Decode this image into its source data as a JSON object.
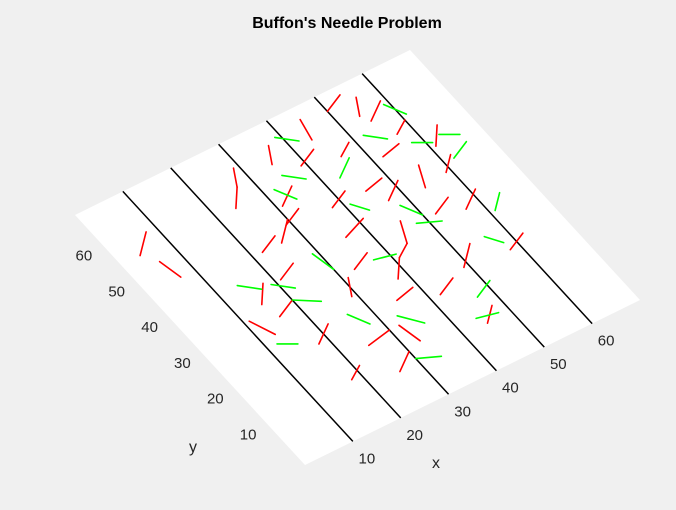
{
  "chart_data": {
    "type": "scatter",
    "title": "Buffon's Needle Problem",
    "xlabel": "x",
    "ylabel": "y",
    "xlim": [
      0,
      70
    ],
    "ylim": [
      0,
      70
    ],
    "x_ticks": [
      10,
      20,
      30,
      40,
      50,
      60
    ],
    "y_ticks": [
      10,
      20,
      30,
      40,
      50,
      60
    ],
    "line_x_positions": [
      10,
      20,
      30,
      40,
      50,
      60
    ],
    "line_color": "#000000",
    "plane_color": "#ffffff",
    "background_color": "#f0f0f0",
    "grid": false,
    "series": [
      {
        "color": "#ff0000",
        "needles": [
          [
            4,
            56,
            8,
            60
          ],
          [
            7,
            48,
            6,
            53
          ],
          [
            15,
            35,
            18,
            39
          ],
          [
            13,
            28,
            11,
            33
          ],
          [
            18,
            22,
            22,
            25
          ],
          [
            25,
            17,
            30,
            18
          ],
          [
            33,
            13,
            32,
            18
          ],
          [
            45,
            10,
            48,
            13
          ],
          [
            21,
            38,
            25,
            40
          ],
          [
            26,
            45,
            30,
            49
          ],
          [
            24,
            56,
            27,
            60
          ],
          [
            31,
            52,
            35,
            55
          ],
          [
            33,
            33,
            37,
            35
          ],
          [
            36,
            40,
            41,
            42
          ],
          [
            38,
            27,
            41,
            31
          ],
          [
            44,
            33,
            46,
            38
          ],
          [
            38,
            47,
            42,
            49
          ],
          [
            47,
            43,
            51,
            46
          ],
          [
            46,
            56,
            49,
            58
          ],
          [
            44,
            62,
            45,
            67
          ],
          [
            52,
            52,
            56,
            53
          ],
          [
            54,
            42,
            56,
            47
          ],
          [
            57,
            34,
            61,
            37
          ],
          [
            55,
            60,
            59,
            63
          ],
          [
            61,
            49,
            64,
            53
          ],
          [
            58,
            22,
            62,
            24
          ],
          [
            49,
            23,
            53,
            27
          ],
          [
            42,
            20,
            46,
            22
          ],
          [
            35,
            23,
            39,
            24
          ],
          [
            29,
            28,
            31,
            32
          ],
          [
            27,
            60,
            29,
            64
          ],
          [
            39,
            58,
            43,
            60
          ],
          [
            50,
            66,
            54,
            68
          ],
          [
            54,
            62,
            56,
            66
          ],
          [
            35,
            61,
            37,
            65
          ],
          [
            29,
            48,
            33,
            50
          ],
          [
            41,
            31,
            44,
            33
          ],
          [
            22,
            45,
            26,
            47
          ],
          [
            18,
            12,
            21,
            14
          ],
          [
            26,
            9,
            30,
            12
          ],
          [
            16,
            31,
            20,
            33
          ],
          [
            52,
            36,
            56,
            38
          ],
          [
            45,
            47,
            49,
            48
          ],
          [
            57,
            55,
            60,
            57
          ],
          [
            59,
            43,
            62,
            46
          ]
        ]
      },
      {
        "color": "#00ff00",
        "needles": [
          [
            19,
            38,
            22,
            35
          ],
          [
            33,
            20,
            36,
            16
          ],
          [
            29,
            40,
            30,
            35
          ],
          [
            35,
            58,
            38,
            55
          ],
          [
            32,
            56,
            34,
            52
          ],
          [
            41,
            46,
            43,
            43
          ],
          [
            52,
            58,
            55,
            55
          ],
          [
            59,
            62,
            61,
            58
          ],
          [
            62,
            45,
            66,
            47
          ],
          [
            48,
            36,
            52,
            34
          ],
          [
            44,
            12,
            48,
            11
          ],
          [
            30,
            10,
            34,
            8
          ],
          [
            14,
            41,
            17,
            38
          ],
          [
            20,
            33,
            24,
            30
          ],
          [
            37,
            33,
            41,
            32
          ],
          [
            56,
            27,
            58,
            24
          ],
          [
            48,
            41,
            50,
            37
          ],
          [
            43,
            52,
            47,
            55
          ],
          [
            61,
            31,
            64,
            34
          ],
          [
            58,
            52,
            61,
            50
          ],
          [
            39,
            66,
            42,
            63
          ],
          [
            26,
            25,
            28,
            21
          ],
          [
            12,
            26,
            15,
            24
          ],
          [
            47,
            16,
            51,
            18
          ],
          [
            63,
            51,
            66,
            49
          ]
        ]
      }
    ]
  }
}
